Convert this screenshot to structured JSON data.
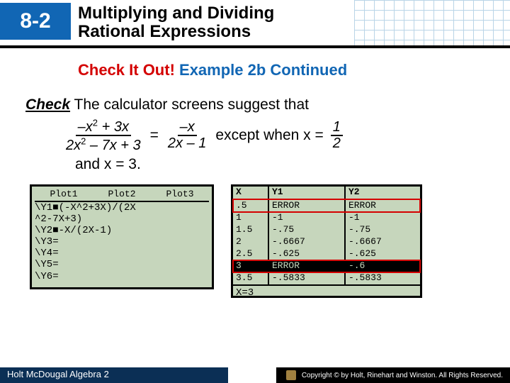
{
  "header": {
    "section_number": "8-2",
    "title_line1": "Multiplying and Dividing",
    "title_line2": "Rational Expressions"
  },
  "subtitle": {
    "red_text": "Check It Out!",
    "blue_text": " Example 2b Continued"
  },
  "body": {
    "check_label": "Check",
    "lead_text": " The calculator screens suggest that",
    "frac1_num": "–x² + 3x",
    "frac1_den": "2x² – 7x + 3",
    "equals": "=",
    "frac2_num": "–x",
    "frac2_den": "2x – 1",
    "except_text": " except when x = ",
    "frac3_num": "1",
    "frac3_den": "2",
    "and_text": "and x = 3."
  },
  "calc_left": {
    "tabs": [
      "Plot1",
      "Plot2",
      "Plot3"
    ],
    "lines": [
      "\\Y1■(‑X^2+3X)/(2X",
      "^2‑7X+3)",
      "\\Y2■‑X/(2X‑1)",
      "\\Y3=",
      "\\Y4=",
      "\\Y5=",
      "\\Y6="
    ]
  },
  "calc_right": {
    "headers": [
      "X",
      "Y1",
      "Y2"
    ],
    "rows": [
      {
        "x": ".5",
        "y1": "ERROR",
        "y2": "ERROR",
        "hl": true,
        "sel": false
      },
      {
        "x": "1",
        "y1": "-1",
        "y2": "-1",
        "hl": false,
        "sel": false
      },
      {
        "x": "1.5",
        "y1": "-.75",
        "y2": "-.75",
        "hl": false,
        "sel": false
      },
      {
        "x": "2",
        "y1": "-.6667",
        "y2": "-.6667",
        "hl": false,
        "sel": false
      },
      {
        "x": "2.5",
        "y1": "-.625",
        "y2": "-.625",
        "hl": false,
        "sel": false
      },
      {
        "x": "3",
        "y1": "ERROR",
        "y2": "-.6",
        "hl": true,
        "sel": true
      },
      {
        "x": "3.5",
        "y1": "-.5833",
        "y2": "-.5833",
        "hl": false,
        "sel": false
      }
    ],
    "bottom": "X=3"
  },
  "footer": {
    "left": "Holt McDougal Algebra 2",
    "right": "Copyright © by Holt, Rinehart and Winston. All Rights Reserved."
  },
  "colors": {
    "brand_blue": "#1166b4",
    "accent_red": "#d40000",
    "screen_bg": "#c6d6bc",
    "footer_dark": "#0b2f55"
  }
}
